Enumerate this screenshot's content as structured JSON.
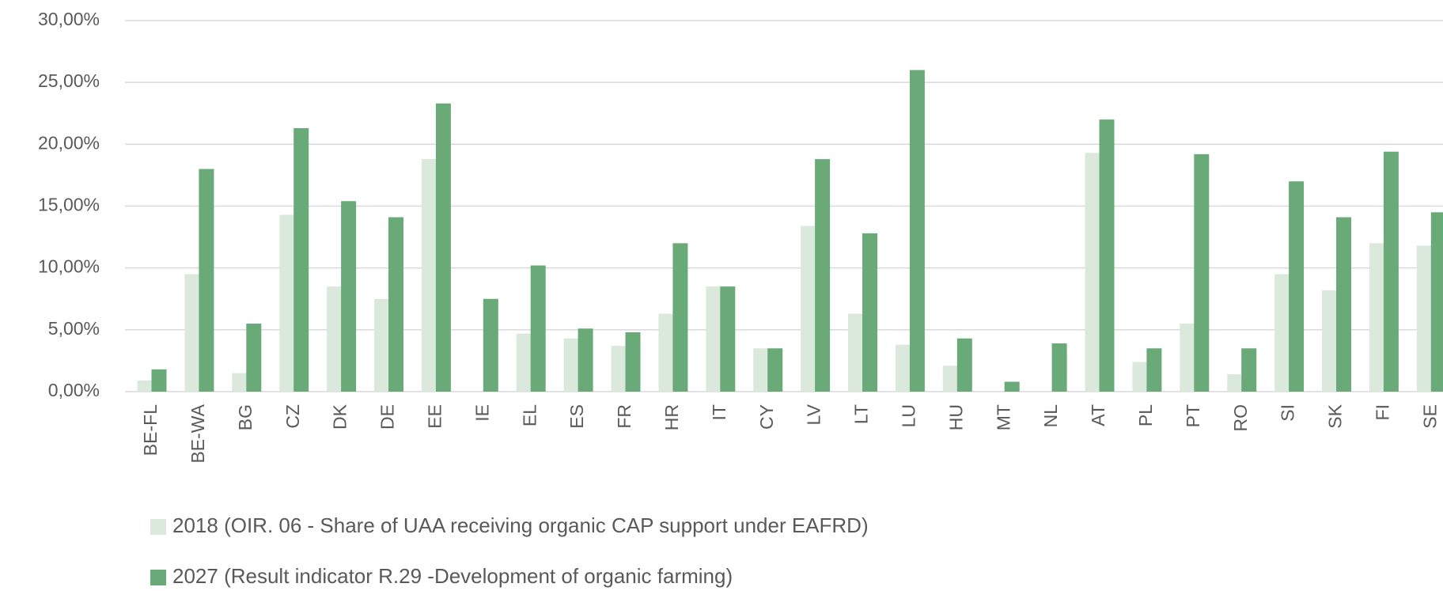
{
  "chart_data": {
    "type": "bar",
    "categories": [
      "BE-FL",
      "BE-WA",
      "BG",
      "CZ",
      "DK",
      "DE",
      "EE",
      "IE",
      "EL",
      "ES",
      "FR",
      "HR",
      "IT",
      "CY",
      "LV",
      "LT",
      "LU",
      "HU",
      "MT",
      "NL",
      "AT",
      "PL",
      "PT",
      "RO",
      "SI",
      "SK",
      "FI",
      "SE"
    ],
    "series": [
      {
        "name": "2018 (OIR. 06 -  Share of UAA receiving organic CAP support under EAFRD)",
        "color": "#dbe9dc",
        "values": [
          0.9,
          9.5,
          1.5,
          14.3,
          8.5,
          7.5,
          18.8,
          0,
          4.7,
          4.3,
          3.7,
          6.3,
          8.5,
          3.5,
          13.4,
          6.3,
          3.8,
          2.1,
          0,
          0,
          19.3,
          2.4,
          5.5,
          1.4,
          9.5,
          8.2,
          12.0,
          11.8
        ]
      },
      {
        "name": "2027 (Result indicator R.29 -Development of organic farming)",
        "color": "#6aaa78",
        "values": [
          1.8,
          18.0,
          5.5,
          21.3,
          15.4,
          14.1,
          23.3,
          7.5,
          10.2,
          5.1,
          4.8,
          12.0,
          8.5,
          3.5,
          18.8,
          12.8,
          26.0,
          4.3,
          0.8,
          3.9,
          22.0,
          3.5,
          19.2,
          3.5,
          17.0,
          14.1,
          19.4,
          14.5
        ]
      }
    ],
    "ylim": [
      0,
      30
    ],
    "yticks": [
      {
        "value": 0,
        "label": "0,00%"
      },
      {
        "value": 5,
        "label": "5,00%"
      },
      {
        "value": 10,
        "label": "10,00%"
      },
      {
        "value": 15,
        "label": "15,00%"
      },
      {
        "value": 20,
        "label": "20,00%"
      },
      {
        "value": 25,
        "label": "25,00%"
      },
      {
        "value": 30,
        "label": "30,00%"
      }
    ],
    "grid": true,
    "legend": "bottom"
  }
}
